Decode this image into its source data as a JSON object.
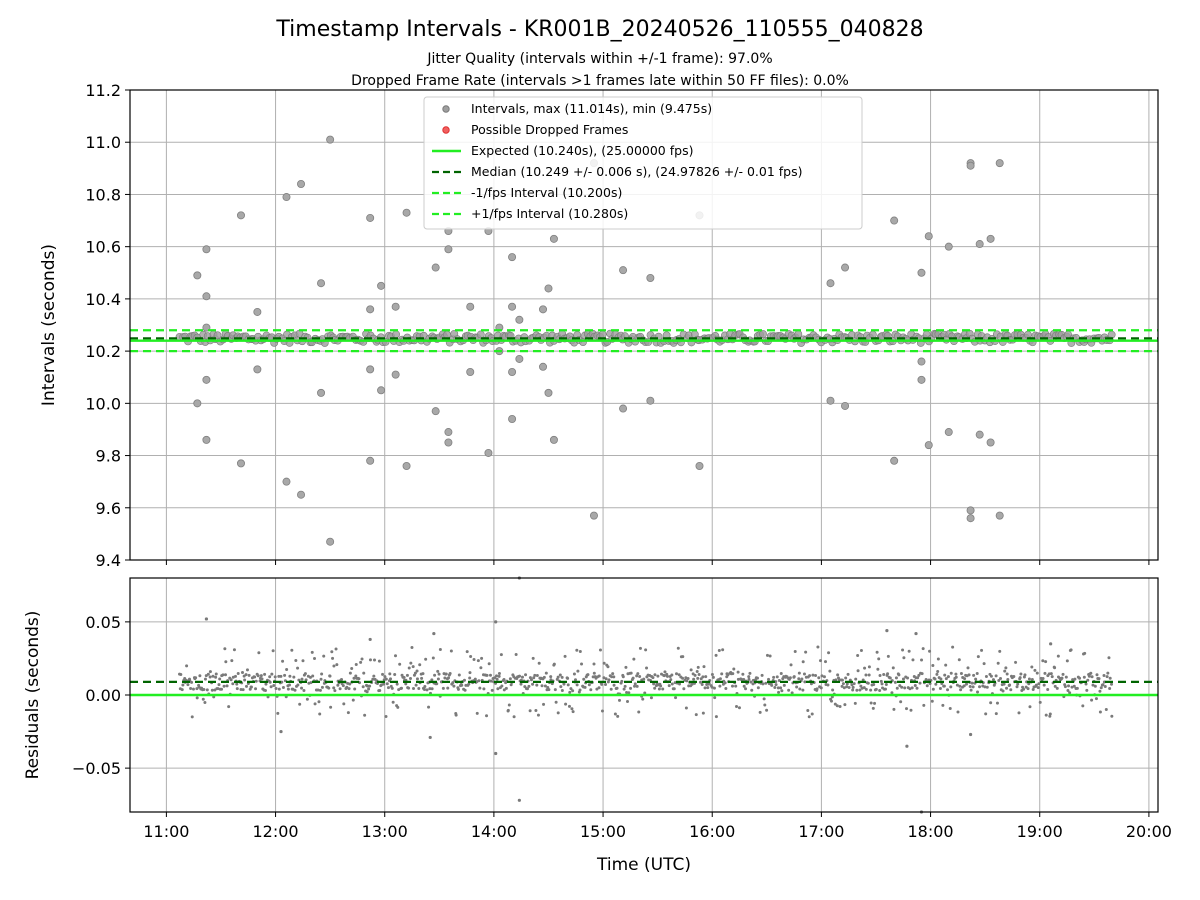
{
  "chart_data": [
    {
      "type": "scatter",
      "title": "Timestamp Intervals - KR001B_20240526_110555_040828",
      "subtitle_1": "Jitter Quality (intervals within +/-1 frame): 97.0%",
      "subtitle_2": "Dropped Frame Rate (intervals >1 frames late within 50 FF files): 0.0%",
      "ylabel": "Intervals (seconds)",
      "xlim": [
        "10:40",
        "20:05"
      ],
      "ylim": [
        9.4,
        11.2
      ],
      "y_ticks": [
        "9.4",
        "9.6",
        "9.8",
        "10.0",
        "10.2",
        "10.4",
        "10.6",
        "10.8",
        "11.0",
        "11.2"
      ],
      "grid": true,
      "legend_position": "upper center",
      "legend": [
        {
          "label": "Intervals, max (11.014s), min (9.475s)",
          "marker": "circle",
          "color": "#9e9e9e"
        },
        {
          "label": "Possible Dropped Frames",
          "marker": "circle",
          "color": "#f06060"
        },
        {
          "label": "Expected (10.240s), (25.00000 fps)",
          "line": "solid",
          "color": "#22ee22"
        },
        {
          "label": "Median (10.249 +/- 0.006 s), (24.97826 +/- 0.01 fps)",
          "line": "dashed",
          "color": "#006400"
        },
        {
          "label": "-1/fps Interval (10.200s)",
          "line": "dashed",
          "color": "#22ee22"
        },
        {
          "label": "+1/fps Interval (10.280s)",
          "line": "dashed",
          "color": "#22ee22"
        }
      ],
      "reference_lines": {
        "expected": 10.24,
        "median": 10.249,
        "minus_1fps": 10.2,
        "plus_1fps": 10.28
      },
      "core_band": {
        "x_range": [
          "11:07",
          "19:40"
        ],
        "center": 10.249,
        "spread": 0.02
      },
      "outliers": [
        {
          "x": "11:17",
          "y": 10.49
        },
        {
          "x": "11:17",
          "y": 10.0
        },
        {
          "x": "11:22",
          "y": 10.59
        },
        {
          "x": "11:22",
          "y": 10.41
        },
        {
          "x": "11:22",
          "y": 10.29
        },
        {
          "x": "11:22",
          "y": 10.09
        },
        {
          "x": "11:22",
          "y": 9.86
        },
        {
          "x": "11:41",
          "y": 10.72
        },
        {
          "x": "11:41",
          "y": 9.77
        },
        {
          "x": "11:50",
          "y": 10.35
        },
        {
          "x": "11:50",
          "y": 10.13
        },
        {
          "x": "12:06",
          "y": 10.79
        },
        {
          "x": "12:06",
          "y": 9.7
        },
        {
          "x": "12:14",
          "y": 10.84
        },
        {
          "x": "12:14",
          "y": 9.65
        },
        {
          "x": "12:25",
          "y": 10.46
        },
        {
          "x": "12:25",
          "y": 10.04
        },
        {
          "x": "12:30",
          "y": 11.01
        },
        {
          "x": "12:30",
          "y": 9.47
        },
        {
          "x": "12:52",
          "y": 10.71
        },
        {
          "x": "12:52",
          "y": 10.36
        },
        {
          "x": "12:52",
          "y": 10.13
        },
        {
          "x": "12:52",
          "y": 9.78
        },
        {
          "x": "12:58",
          "y": 10.45
        },
        {
          "x": "12:58",
          "y": 10.05
        },
        {
          "x": "13:06",
          "y": 10.37
        },
        {
          "x": "13:06",
          "y": 10.11
        },
        {
          "x": "13:12",
          "y": 10.73
        },
        {
          "x": "13:12",
          "y": 9.76
        },
        {
          "x": "13:28",
          "y": 10.52
        },
        {
          "x": "13:28",
          "y": 9.97
        },
        {
          "x": "13:35",
          "y": 10.66
        },
        {
          "x": "13:35",
          "y": 10.59
        },
        {
          "x": "13:35",
          "y": 9.89
        },
        {
          "x": "13:35",
          "y": 9.85
        },
        {
          "x": "13:47",
          "y": 10.37
        },
        {
          "x": "13:47",
          "y": 10.12
        },
        {
          "x": "13:57",
          "y": 10.66
        },
        {
          "x": "13:57",
          "y": 9.81
        },
        {
          "x": "14:03",
          "y": 10.29
        },
        {
          "x": "14:03",
          "y": 10.2
        },
        {
          "x": "14:10",
          "y": 10.56
        },
        {
          "x": "14:10",
          "y": 10.37
        },
        {
          "x": "14:10",
          "y": 10.12
        },
        {
          "x": "14:10",
          "y": 9.94
        },
        {
          "x": "14:14",
          "y": 10.32
        },
        {
          "x": "14:14",
          "y": 10.17
        },
        {
          "x": "14:27",
          "y": 10.36
        },
        {
          "x": "14:27",
          "y": 10.14
        },
        {
          "x": "14:30",
          "y": 10.44
        },
        {
          "x": "14:30",
          "y": 10.04
        },
        {
          "x": "14:33",
          "y": 10.63
        },
        {
          "x": "14:33",
          "y": 9.86
        },
        {
          "x": "14:55",
          "y": 10.92
        },
        {
          "x": "14:55",
          "y": 9.57
        },
        {
          "x": "15:11",
          "y": 10.51
        },
        {
          "x": "15:11",
          "y": 9.98
        },
        {
          "x": "15:26",
          "y": 10.48
        },
        {
          "x": "15:26",
          "y": 10.01
        },
        {
          "x": "15:53",
          "y": 10.72
        },
        {
          "x": "15:53",
          "y": 9.76
        },
        {
          "x": "17:05",
          "y": 10.46
        },
        {
          "x": "17:05",
          "y": 10.01
        },
        {
          "x": "17:13",
          "y": 10.52
        },
        {
          "x": "17:13",
          "y": 9.99
        },
        {
          "x": "17:40",
          "y": 10.7
        },
        {
          "x": "17:40",
          "y": 9.78
        },
        {
          "x": "17:55",
          "y": 10.5
        },
        {
          "x": "17:55",
          "y": 10.16
        },
        {
          "x": "17:55",
          "y": 10.09
        },
        {
          "x": "17:59",
          "y": 10.64
        },
        {
          "x": "17:59",
          "y": 9.84
        },
        {
          "x": "18:10",
          "y": 10.6
        },
        {
          "x": "18:10",
          "y": 9.89
        },
        {
          "x": "18:22",
          "y": 10.92
        },
        {
          "x": "18:22",
          "y": 10.91
        },
        {
          "x": "18:22",
          "y": 9.56
        },
        {
          "x": "18:22",
          "y": 9.59
        },
        {
          "x": "18:27",
          "y": 10.61
        },
        {
          "x": "18:27",
          "y": 9.88
        },
        {
          "x": "18:33",
          "y": 10.63
        },
        {
          "x": "18:33",
          "y": 9.85
        },
        {
          "x": "18:38",
          "y": 10.92
        },
        {
          "x": "18:38",
          "y": 9.57
        }
      ],
      "marker_color": "#9e9e9e"
    },
    {
      "type": "scatter",
      "xlabel": "Time (UTC)",
      "ylabel": "Residuals (seconds)",
      "xlim": [
        "10:40",
        "20:05"
      ],
      "ylim": [
        -0.08,
        0.08
      ],
      "x_ticks": [
        "11:00",
        "12:00",
        "13:00",
        "14:00",
        "15:00",
        "16:00",
        "17:00",
        "18:00",
        "19:00",
        "20:00"
      ],
      "y_ticks": [
        "−0.05",
        "0.00",
        "0.05"
      ],
      "y_tick_values": [
        -0.05,
        0.0,
        0.05
      ],
      "grid": true,
      "reference_lines": {
        "zero": 0.0,
        "median_offset": 0.009
      },
      "core_band": {
        "x_range": [
          "11:07",
          "19:40"
        ],
        "center": 0.009,
        "spread": 0.02
      },
      "outliers": [
        {
          "x": "11:22",
          "y": 0.052
        },
        {
          "x": "12:03",
          "y": -0.025
        },
        {
          "x": "12:52",
          "y": 0.038
        },
        {
          "x": "13:27",
          "y": 0.042
        },
        {
          "x": "13:25",
          "y": -0.029
        },
        {
          "x": "14:01",
          "y": 0.05
        },
        {
          "x": "14:01",
          "y": -0.04
        },
        {
          "x": "14:14",
          "y": 0.08
        },
        {
          "x": "14:14",
          "y": -0.072
        },
        {
          "x": "17:36",
          "y": 0.044
        },
        {
          "x": "17:47",
          "y": -0.035
        },
        {
          "x": "17:52",
          "y": 0.042
        },
        {
          "x": "17:55",
          "y": -0.08
        },
        {
          "x": "18:22",
          "y": -0.027
        },
        {
          "x": "19:06",
          "y": 0.035
        }
      ],
      "marker_color": "#808080",
      "line_colors": {
        "zero": "#22ee22",
        "median_offset": "#006400"
      }
    }
  ]
}
